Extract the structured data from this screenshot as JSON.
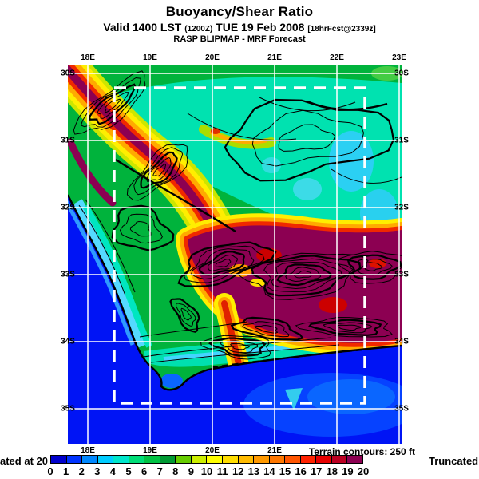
{
  "header": {
    "title": "Buoyancy/Shear Ratio",
    "valid_main": "Valid 1400 LST",
    "valid_zulu": "(1200Z)",
    "valid_date": "TUE 19 Feb 2008",
    "valid_fcst": "[18hrFcst@2339z]",
    "model_line": "RASP BLIPMAP - MRF Forecast"
  },
  "map": {
    "top_ticks": [
      "18E",
      "19E",
      "20E",
      "21E",
      "22E",
      "23E"
    ],
    "bottom_ticks": [
      "18E",
      "19E",
      "20E",
      "21E"
    ],
    "left_ticks": [
      "30S",
      "31S",
      "32S",
      "33S",
      "34S",
      "35S"
    ],
    "right_ticks": [
      "30S",
      "31S",
      "32S",
      "33S",
      "34S",
      "35S"
    ],
    "terrain_note": "Terrain contours: 250 ft"
  },
  "colorbar": {
    "labels": [
      "0",
      "1",
      "2",
      "3",
      "4",
      "5",
      "6",
      "7",
      "8",
      "9",
      "10",
      "11",
      "12",
      "13",
      "14",
      "15",
      "16",
      "17",
      "18",
      "19",
      "20"
    ],
    "colors": [
      "#0000CC",
      "#0033FF",
      "#0088FF",
      "#00CCFF",
      "#00E6CC",
      "#00DD77",
      "#00C244",
      "#009933",
      "#66CC00",
      "#CCEE00",
      "#FFFF00",
      "#FFDD00",
      "#FFBB00",
      "#FF9900",
      "#FF7700",
      "#FF5500",
      "#FF2200",
      "#E60000",
      "#BB0022",
      "#8C0052"
    ],
    "left_note": "ated at 20",
    "right_note": "Truncated"
  }
}
